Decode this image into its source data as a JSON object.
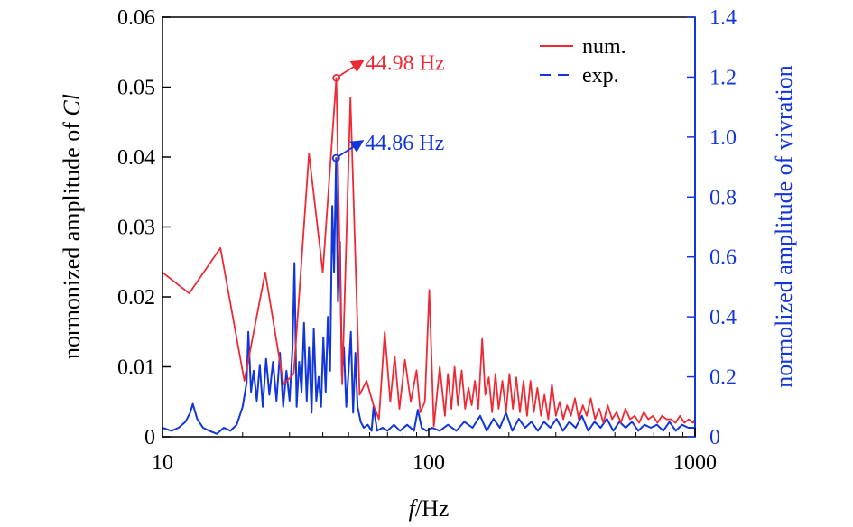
{
  "chart_data": {
    "type": "line",
    "x_scale": "log",
    "xlim": [
      10,
      1000
    ],
    "y_left_lim": [
      0,
      0.06
    ],
    "y_right_lim": [
      0,
      1.4
    ],
    "grid": false,
    "legend_position": "top-right",
    "xlabel_italic": "f",
    "xlabel_rest": "/Hz",
    "ylabel_left_prefix": "normonized amplitude of ",
    "ylabel_left_italic": "Cl",
    "ylabel_right": "normolized amplitude of vivration",
    "x_ticks": [
      {
        "value": 10,
        "label": "10"
      },
      {
        "value": 100,
        "label": "100"
      },
      {
        "value": 1000,
        "label": "1000"
      }
    ],
    "y_left_ticks": [
      {
        "value": 0,
        "label": "0"
      },
      {
        "value": 0.01,
        "label": "0.01"
      },
      {
        "value": 0.02,
        "label": "0.02"
      },
      {
        "value": 0.03,
        "label": "0.03"
      },
      {
        "value": 0.04,
        "label": "0.04"
      },
      {
        "value": 0.05,
        "label": "0.05"
      },
      {
        "value": 0.06,
        "label": "0.06"
      }
    ],
    "y_right_ticks": [
      {
        "value": 0,
        "label": "0"
      },
      {
        "value": 0.2,
        "label": "0.2"
      },
      {
        "value": 0.4,
        "label": "0.4"
      },
      {
        "value": 0.6,
        "label": "0.6"
      },
      {
        "value": 0.8,
        "label": "0.8"
      },
      {
        "value": 1.0,
        "label": "1.0"
      },
      {
        "value": 1.2,
        "label": "1.2"
      },
      {
        "value": 1.4,
        "label": "1.4"
      }
    ],
    "colors": {
      "num": "#ee2a35",
      "exp": "#1236d8",
      "axis": "#000000",
      "right_axis": "#1236d8"
    },
    "series": [
      {
        "name": "num.",
        "axis": "left",
        "style": "solid",
        "x": [
          10,
          12.6,
          16.5,
          20.3,
          24.3,
          28.5,
          31.1,
          35.5,
          40.0,
          44.98,
          47.3,
          50.8,
          55.0,
          58.4,
          62.0,
          65.0,
          68.3,
          71.7,
          74.5,
          77.6,
          81.4,
          85.6,
          90.0,
          93.0,
          96.7,
          100.5,
          104.5,
          110.0,
          115.0,
          118.0,
          121.6,
          125.0,
          128.7,
          133.0,
          137.0,
          141.0,
          145.0,
          149.0,
          153.5,
          158.7,
          163.0,
          168.0,
          173.0,
          178.0,
          183.0,
          189.0,
          195.0,
          201.0,
          207.0,
          213.0,
          220.0,
          227.0,
          234.0,
          241.0,
          248.0,
          256.0,
          264.0,
          272.0,
          281.0,
          290.0,
          300.0,
          310.0,
          320.0,
          331.0,
          342.0,
          354.0,
          366.0,
          379.0,
          392.0,
          406.0,
          421.0,
          437.0,
          453.0,
          470.0,
          488.0,
          507.0,
          527.0,
          548.0,
          570.0,
          593.0,
          617.0,
          642.0,
          668.0,
          695.0,
          723.0,
          752.0,
          782.0,
          813.0,
          845.0,
          878.0,
          912.0,
          947.0,
          983.0,
          1000.0
        ],
        "y": [
          0.0235,
          0.0205,
          0.027,
          0.008,
          0.0235,
          0.0075,
          0.009,
          0.0405,
          0.0235,
          0.0513,
          0.0075,
          0.0485,
          0.006,
          0.008,
          0.0045,
          0.0025,
          0.015,
          0.005,
          0.0115,
          0.004,
          0.011,
          0.005,
          0.0095,
          0.0035,
          0.005,
          0.021,
          0.0015,
          0.01,
          0.003,
          0.009,
          0.004,
          0.01,
          0.0045,
          0.0095,
          0.004,
          0.007,
          0.0045,
          0.008,
          0.004,
          0.014,
          0.006,
          0.0085,
          0.0035,
          0.009,
          0.004,
          0.008,
          0.0035,
          0.009,
          0.004,
          0.0085,
          0.0035,
          0.008,
          0.003,
          0.008,
          0.0035,
          0.007,
          0.003,
          0.006,
          0.0025,
          0.0075,
          0.003,
          0.005,
          0.0025,
          0.0045,
          0.003,
          0.0055,
          0.0025,
          0.0045,
          0.003,
          0.0055,
          0.0025,
          0.004,
          0.002,
          0.0045,
          0.0025,
          0.0035,
          0.002,
          0.004,
          0.0025,
          0.003,
          0.002,
          0.0035,
          0.0025,
          0.003,
          0.002,
          0.003,
          0.0025,
          0.0025,
          0.002,
          0.003,
          0.002,
          0.0025,
          0.002,
          0.0025
        ]
      },
      {
        "name": "exp.",
        "axis": "right",
        "style": "dashed",
        "x": [
          10,
          10.8,
          11.5,
          12.2,
          12.7,
          13.0,
          13.5,
          14.2,
          15.0,
          16.0,
          17.0,
          18.0,
          19.0,
          20.0,
          20.7,
          21.0,
          21.5,
          22.0,
          22.6,
          23.2,
          23.8,
          24.5,
          25.2,
          26.0,
          26.8,
          27.6,
          28.4,
          29.2,
          30.0,
          30.8,
          31.3,
          31.9,
          32.6,
          33.3,
          34.0,
          34.8,
          35.5,
          36.3,
          37.0,
          37.8,
          38.6,
          39.4,
          40.2,
          41.0,
          41.8,
          42.6,
          43.4,
          44.1,
          44.86,
          45.6,
          46.4,
          47.2,
          48.0,
          49.0,
          50.0,
          51.0,
          52.0,
          53.0,
          54.0,
          55.5,
          57.0,
          59.0,
          61.0,
          62.0,
          64.0,
          67.0,
          70.0,
          74.0,
          78.0,
          83.0,
          88.0,
          91.0,
          94.0,
          98.0,
          103.0,
          110.0,
          118.0,
          127.0,
          136.0,
          146.0,
          156.0,
          165.0,
          175.0,
          185.0,
          195.0,
          206.0,
          218.0,
          230.0,
          243.0,
          257.0,
          271.0,
          286.0,
          302.0,
          319.0,
          337.0,
          356.0,
          376.0,
          397.0,
          419.0,
          442.0,
          467.0,
          493.0,
          520.0,
          549.0,
          580.0,
          612.0,
          646.0,
          682.0,
          720.0,
          760.0,
          802.0,
          847.0,
          894.0,
          944.0,
          1000.0
        ],
        "y": [
          0.03,
          0.02,
          0.03,
          0.05,
          0.08,
          0.11,
          0.06,
          0.03,
          0.02,
          0.01,
          0.03,
          0.02,
          0.04,
          0.1,
          0.18,
          0.35,
          0.15,
          0.22,
          0.12,
          0.24,
          0.1,
          0.26,
          0.14,
          0.25,
          0.12,
          0.28,
          0.1,
          0.22,
          0.12,
          0.3,
          0.58,
          0.1,
          0.25,
          0.15,
          0.38,
          0.12,
          0.3,
          0.08,
          0.36,
          0.12,
          0.2,
          0.1,
          0.33,
          0.15,
          0.4,
          0.22,
          0.77,
          0.55,
          0.93,
          0.45,
          0.65,
          0.2,
          0.3,
          0.1,
          0.22,
          0.35,
          0.08,
          0.28,
          0.1,
          0.05,
          0.03,
          0.04,
          0.02,
          0.1,
          0.02,
          0.03,
          0.02,
          0.04,
          0.02,
          0.04,
          0.02,
          0.09,
          0.03,
          0.02,
          0.03,
          0.02,
          0.04,
          0.02,
          0.05,
          0.03,
          0.07,
          0.02,
          0.06,
          0.03,
          0.08,
          0.02,
          0.06,
          0.03,
          0.05,
          0.02,
          0.05,
          0.03,
          0.06,
          0.02,
          0.05,
          0.03,
          0.07,
          0.02,
          0.05,
          0.03,
          0.06,
          0.02,
          0.05,
          0.03,
          0.05,
          0.02,
          0.04,
          0.03,
          0.04,
          0.02,
          0.05,
          0.02,
          0.04,
          0.03,
          0.03
        ]
      }
    ],
    "annotations": [
      {
        "label": "44.98 Hz",
        "series": "num.",
        "x": 44.98,
        "y": 0.0513,
        "color": "#ee2a35"
      },
      {
        "label": "44.86 Hz",
        "series": "exp.",
        "x": 44.86,
        "y": 0.93,
        "color": "#1236d8"
      }
    ]
  }
}
